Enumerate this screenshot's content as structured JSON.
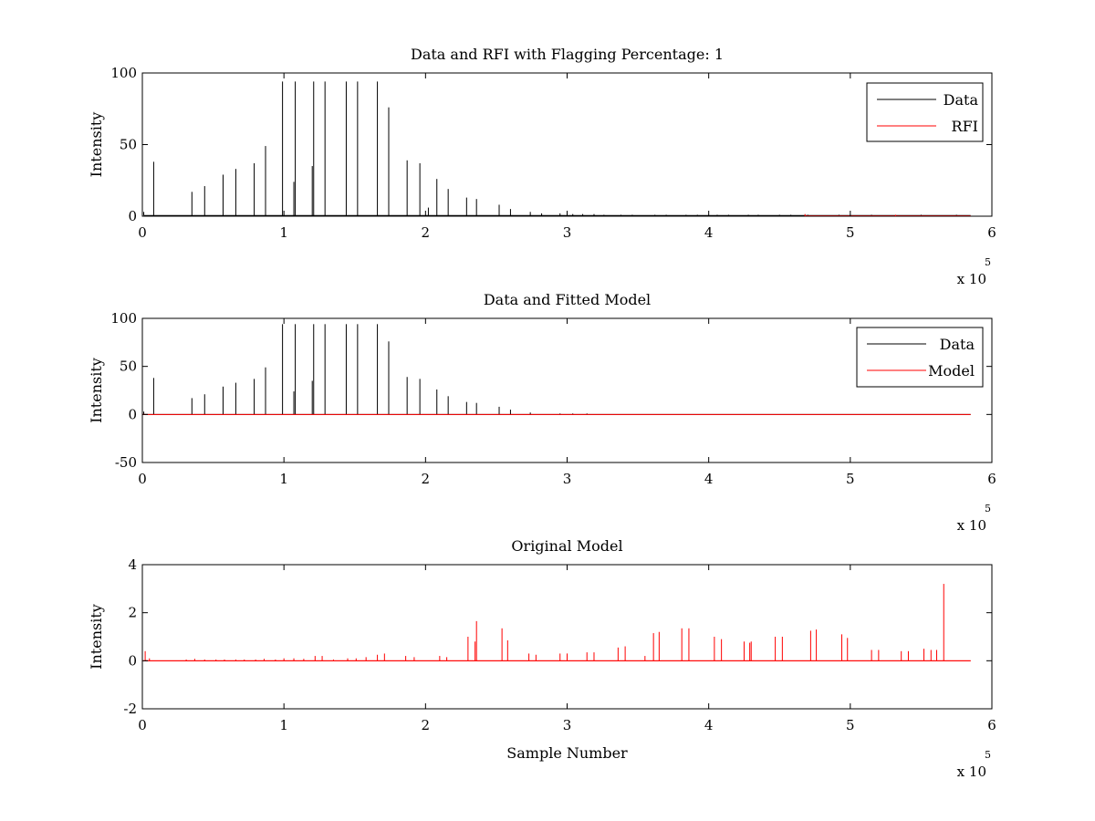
{
  "chart_data": [
    {
      "type": "line",
      "title": "Data and RFI with Flagging Percentage: 1",
      "xlabel": "",
      "ylabel": "Intensity",
      "xlim": [
        0,
        600000
      ],
      "ylim": [
        0,
        100
      ],
      "x_ticks": [
        0,
        100000,
        200000,
        300000,
        400000,
        500000,
        600000
      ],
      "x_tick_labels": [
        "0",
        "1",
        "2",
        "3",
        "4",
        "5",
        "6"
      ],
      "x_multiplier": {
        "base": "x 10",
        "exponent": "5"
      },
      "y_ticks": [
        0,
        50,
        100
      ],
      "y_tick_labels": [
        "0",
        "50",
        "100"
      ],
      "legend_position": "top-right",
      "grid": false,
      "series": [
        {
          "name": "Data",
          "color": "#000000",
          "style": "spikes",
          "baseline": 0.5,
          "points": [
            [
              1000,
              3
            ],
            [
              8000,
              38
            ],
            [
              35000,
              17
            ],
            [
              44000,
              21
            ],
            [
              57000,
              29
            ],
            [
              66000,
              33
            ],
            [
              79000,
              37
            ],
            [
              87000,
              49
            ],
            [
              99000,
              94
            ],
            [
              107000,
              24
            ],
            [
              108000,
              94
            ],
            [
              120000,
              35
            ],
            [
              121000,
              94
            ],
            [
              129000,
              94
            ],
            [
              144000,
              94
            ],
            [
              152000,
              94
            ],
            [
              166000,
              94
            ],
            [
              174000,
              76
            ],
            [
              187000,
              39
            ],
            [
              196000,
              37
            ],
            [
              202000,
              6
            ],
            [
              208000,
              26
            ],
            [
              216000,
              19
            ],
            [
              229000,
              13
            ],
            [
              236000,
              12
            ],
            [
              252000,
              8
            ],
            [
              260000,
              5
            ],
            [
              274000,
              3
            ],
            [
              282000,
              2
            ],
            [
              295000,
              2
            ],
            [
              304000,
              1.5
            ],
            [
              311000,
              1.5
            ],
            [
              319000,
              1.5
            ],
            [
              326000,
              1
            ],
            [
              338000,
              1
            ],
            [
              346000,
              1
            ],
            [
              362000,
              1
            ],
            [
              370000,
              1
            ],
            [
              384000,
              1
            ],
            [
              392000,
              1
            ],
            [
              406000,
              1
            ],
            [
              414000,
              1
            ],
            [
              428000,
              1
            ],
            [
              435000,
              1
            ],
            [
              450000,
              1
            ],
            [
              458000,
              1
            ],
            [
              470000,
              1
            ],
            [
              492000,
              1
            ],
            [
              515000,
              1
            ],
            [
              550000,
              1
            ],
            [
              575000,
              1
            ]
          ]
        },
        {
          "name": "RFI",
          "color": "#ff0000",
          "style": "spikes",
          "baseline": 0,
          "points": [
            [
              468000,
              1.5
            ],
            [
              532000,
              1
            ]
          ]
        }
      ]
    },
    {
      "type": "line",
      "title": "Data and Fitted Model",
      "xlabel": "",
      "ylabel": "Intensity",
      "xlim": [
        0,
        600000
      ],
      "ylim": [
        -50,
        100
      ],
      "x_ticks": [
        0,
        100000,
        200000,
        300000,
        400000,
        500000,
        600000
      ],
      "x_tick_labels": [
        "0",
        "1",
        "2",
        "3",
        "4",
        "5",
        "6"
      ],
      "x_multiplier": {
        "base": "x 10",
        "exponent": "5"
      },
      "y_ticks": [
        -50,
        0,
        50,
        100
      ],
      "y_tick_labels": [
        "-50",
        "0",
        "50",
        "100"
      ],
      "legend_position": "top-right",
      "grid": false,
      "series": [
        {
          "name": "Data",
          "color": "#000000",
          "style": "spikes",
          "baseline": 0,
          "points": [
            [
              1000,
              3
            ],
            [
              8000,
              38
            ],
            [
              35000,
              17
            ],
            [
              44000,
              21
            ],
            [
              57000,
              29
            ],
            [
              66000,
              33
            ],
            [
              79000,
              37
            ],
            [
              87000,
              49
            ],
            [
              99000,
              94
            ],
            [
              107000,
              24
            ],
            [
              108000,
              94
            ],
            [
              120000,
              35
            ],
            [
              121000,
              94
            ],
            [
              129000,
              94
            ],
            [
              144000,
              94
            ],
            [
              152000,
              94
            ],
            [
              166000,
              94
            ],
            [
              174000,
              76
            ],
            [
              187000,
              39
            ],
            [
              196000,
              37
            ],
            [
              208000,
              26
            ],
            [
              216000,
              19
            ],
            [
              229000,
              13
            ],
            [
              236000,
              12
            ],
            [
              252000,
              8
            ],
            [
              260000,
              5
            ],
            [
              274000,
              2
            ],
            [
              295000,
              1
            ],
            [
              304000,
              1
            ],
            [
              314000,
              1
            ]
          ]
        },
        {
          "name": "Model",
          "color": "#ff0000",
          "style": "line",
          "points": [
            [
              0,
              0
            ],
            [
              585000,
              0
            ]
          ]
        }
      ]
    },
    {
      "type": "line",
      "title": "Original Model",
      "xlabel": "Sample Number",
      "ylabel": "Intensity",
      "xlim": [
        0,
        600000
      ],
      "ylim": [
        -2,
        4
      ],
      "x_ticks": [
        0,
        100000,
        200000,
        300000,
        400000,
        500000,
        600000
      ],
      "x_tick_labels": [
        "0",
        "1",
        "2",
        "3",
        "4",
        "5",
        "6"
      ],
      "x_multiplier": {
        "base": "x 10",
        "exponent": "5"
      },
      "y_ticks": [
        -2,
        0,
        2,
        4
      ],
      "y_tick_labels": [
        "-2",
        "0",
        "2",
        "4"
      ],
      "grid": false,
      "series": [
        {
          "color": "#ff0000",
          "style": "spikes",
          "baseline": 0,
          "points": [
            [
              2000,
              0.4
            ],
            [
              5000,
              0.1
            ],
            [
              31000,
              0.05
            ],
            [
              37000,
              0.08
            ],
            [
              44000,
              0.05
            ],
            [
              52000,
              0.05
            ],
            [
              58000,
              0.05
            ],
            [
              66000,
              0.05
            ],
            [
              72000,
              0.05
            ],
            [
              80000,
              0.05
            ],
            [
              86000,
              0.08
            ],
            [
              94000,
              0.05
            ],
            [
              100000,
              0.1
            ],
            [
              107000,
              0.1
            ],
            [
              114000,
              0.08
            ],
            [
              122000,
              0.2
            ],
            [
              127000,
              0.2
            ],
            [
              135000,
              0.05
            ],
            [
              145000,
              0.1
            ],
            [
              151000,
              0.1
            ],
            [
              158000,
              0.15
            ],
            [
              166000,
              0.25
            ],
            [
              171000,
              0.3
            ],
            [
              186000,
              0.2
            ],
            [
              192000,
              0.15
            ],
            [
              210000,
              0.2
            ],
            [
              215000,
              0.15
            ],
            [
              230000,
              1.0
            ],
            [
              235000,
              0.8
            ],
            [
              236000,
              1.65
            ],
            [
              254000,
              1.35
            ],
            [
              258000,
              0.85
            ],
            [
              273000,
              0.3
            ],
            [
              278000,
              0.25
            ],
            [
              295000,
              0.3
            ],
            [
              300000,
              0.3
            ],
            [
              314000,
              0.35
            ],
            [
              319000,
              0.35
            ],
            [
              336000,
              0.55
            ],
            [
              341000,
              0.6
            ],
            [
              355000,
              0.2
            ],
            [
              361000,
              1.15
            ],
            [
              365000,
              1.2
            ],
            [
              381000,
              1.35
            ],
            [
              386000,
              1.35
            ],
            [
              404000,
              1.0
            ],
            [
              409000,
              0.9
            ],
            [
              425000,
              0.8
            ],
            [
              429000,
              0.75
            ],
            [
              430000,
              0.8
            ],
            [
              447000,
              1.0
            ],
            [
              452000,
              1.0
            ],
            [
              472000,
              1.25
            ],
            [
              476000,
              1.3
            ],
            [
              494000,
              1.1
            ],
            [
              498000,
              0.95
            ],
            [
              515000,
              0.45
            ],
            [
              520000,
              0.45
            ],
            [
              536000,
              0.4
            ],
            [
              541000,
              0.4
            ],
            [
              552000,
              0.5
            ],
            [
              557000,
              0.45
            ],
            [
              561000,
              0.45
            ],
            [
              566000,
              3.2
            ]
          ]
        },
        {
          "color": "#ff0000",
          "style": "line",
          "points": [
            [
              0,
              0
            ],
            [
              585000,
              0
            ]
          ]
        }
      ]
    }
  ]
}
